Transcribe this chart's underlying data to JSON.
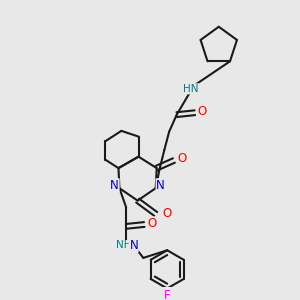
{
  "background_color": "#e8e8e8",
  "C": "#1a1a1a",
  "N": "#0000cc",
  "O": "#ff0000",
  "F": "#ff00ff",
  "HN": "#008080",
  "bond_lw": 1.5,
  "figsize": [
    3.0,
    3.0
  ],
  "dpi": 100,
  "xlim": [
    0,
    300
  ],
  "ylim": [
    0,
    300
  ]
}
